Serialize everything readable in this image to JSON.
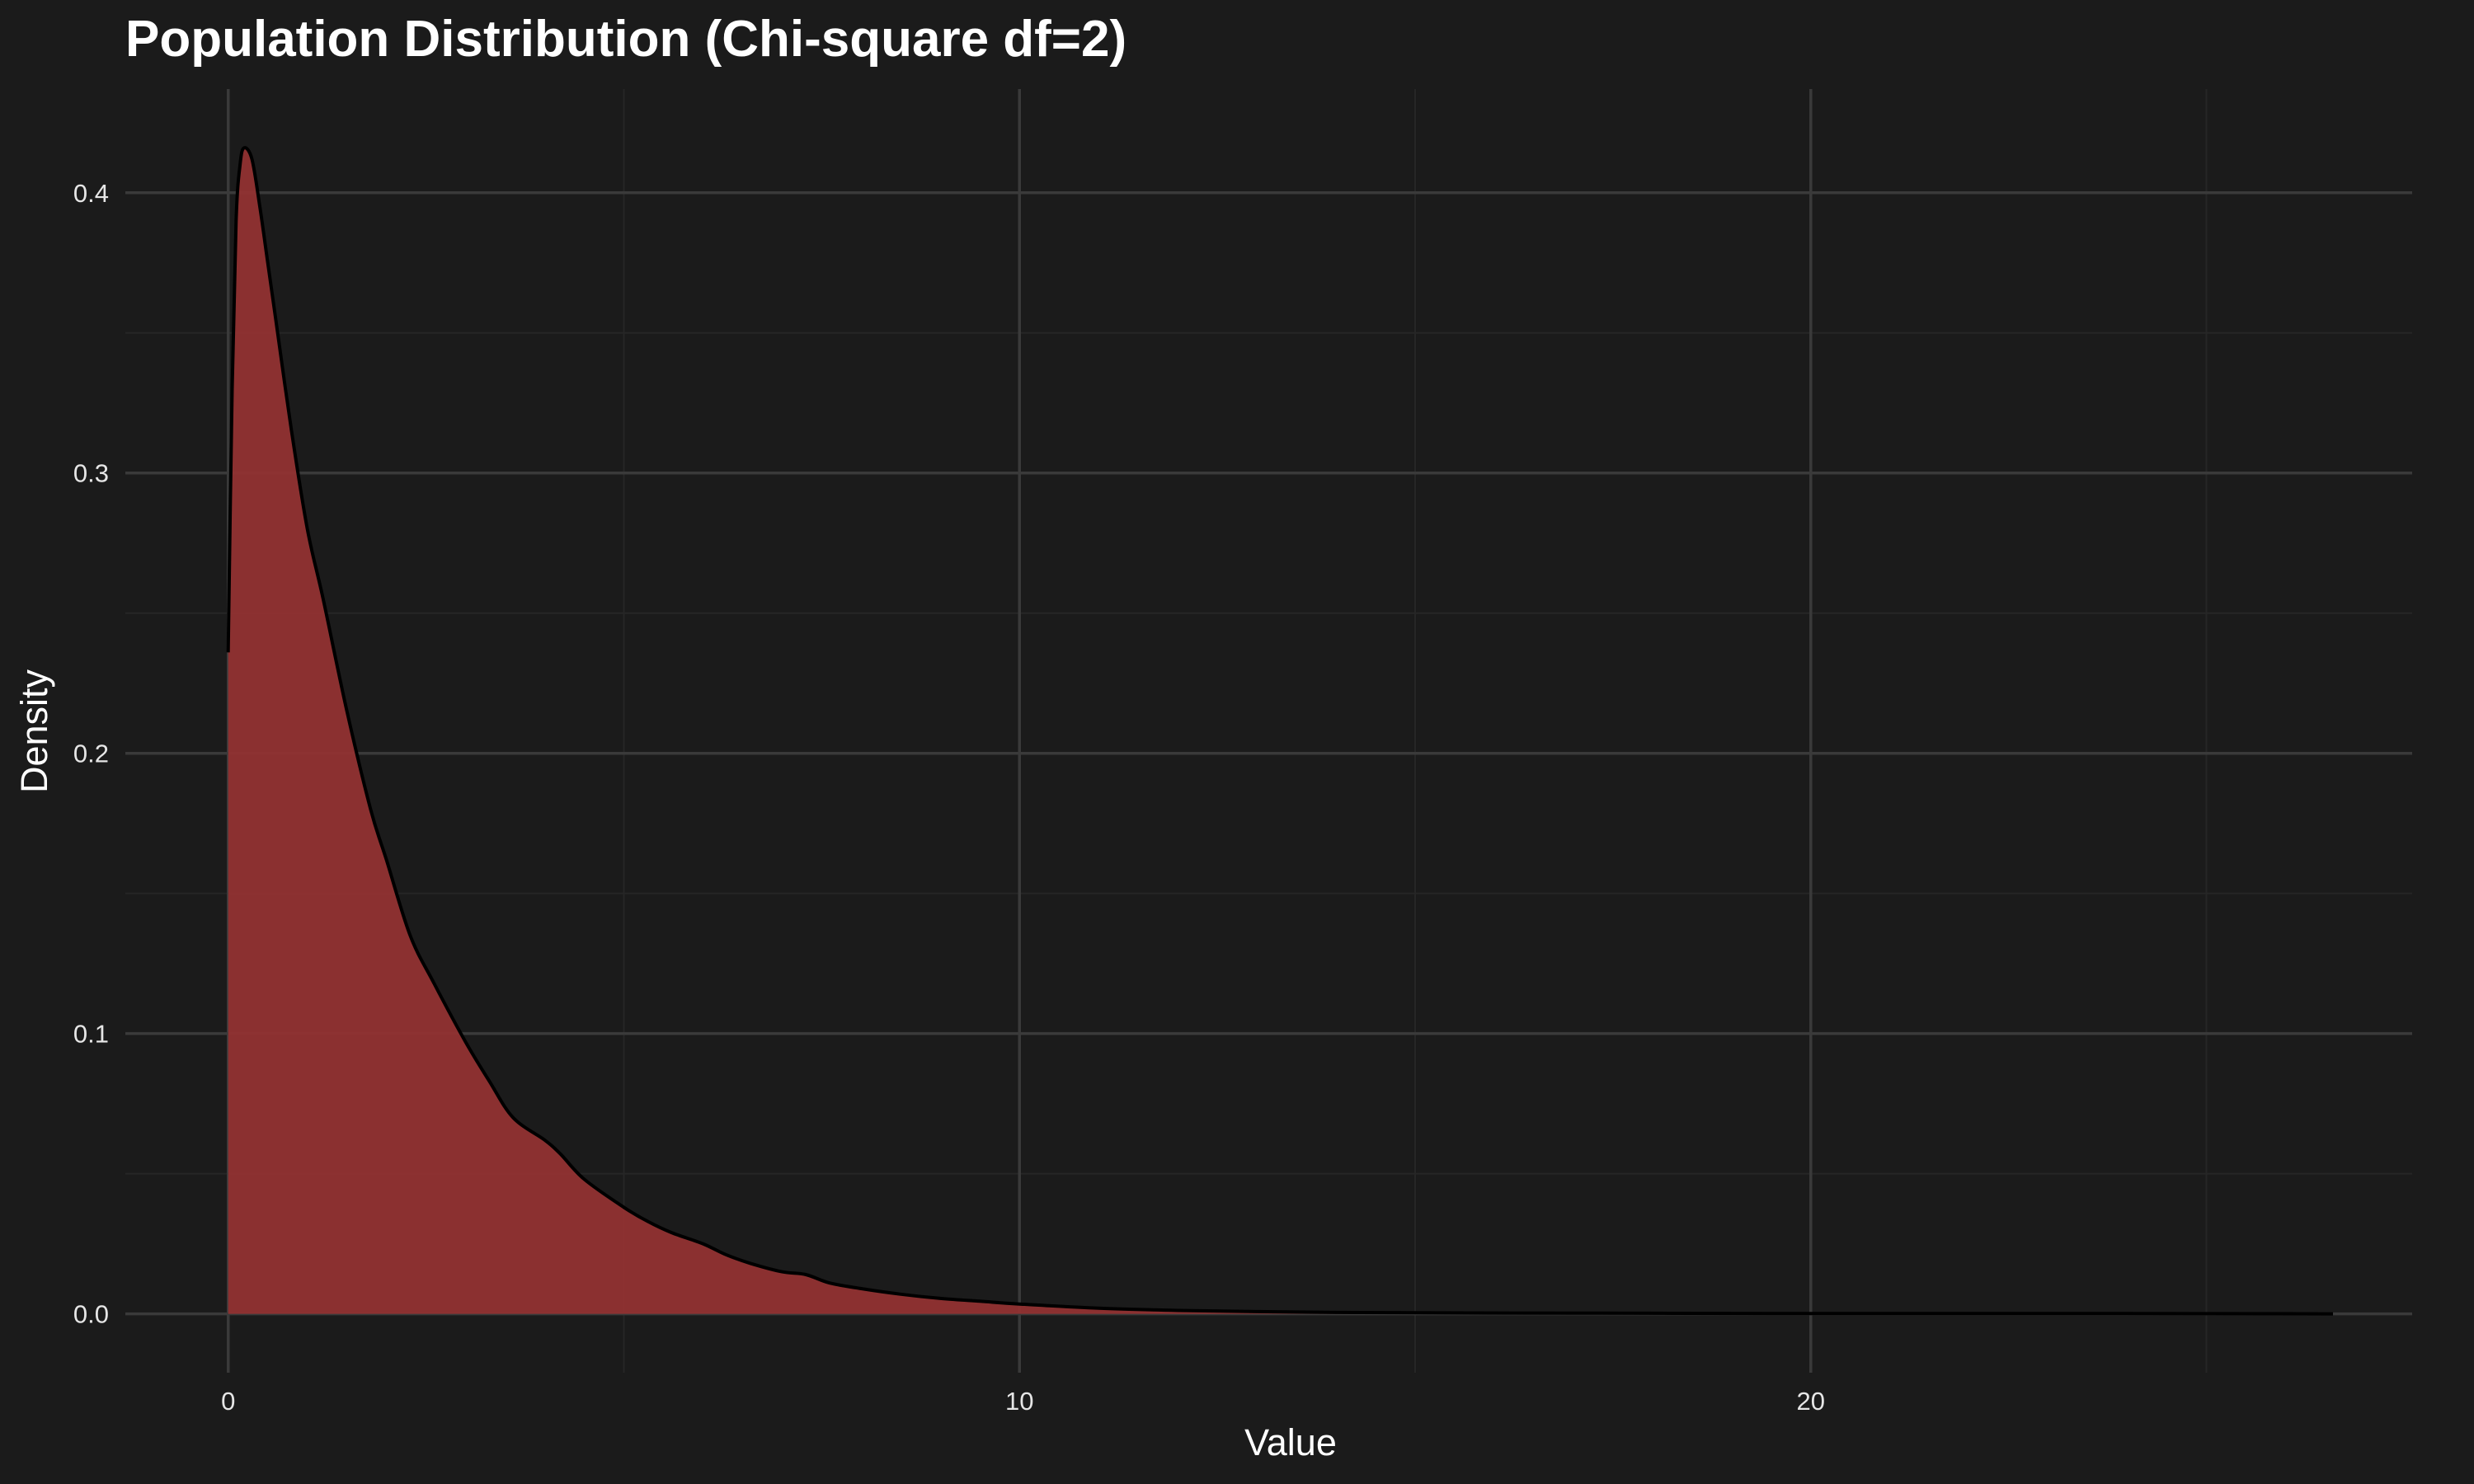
{
  "chart_data": {
    "type": "area",
    "title": "Population Distribution (Chi-square df=2)",
    "xlabel": "Value",
    "ylabel": "Density",
    "xlim": [
      -1.3,
      27.6
    ],
    "ylim": [
      -0.021,
      0.437
    ],
    "x_ticks": [
      0,
      10,
      20
    ],
    "x_tick_labels": [
      "0",
      "10",
      "20"
    ],
    "y_ticks": [
      0.0,
      0.1,
      0.2,
      0.3,
      0.4
    ],
    "y_tick_labels": [
      "0.0",
      "0.1",
      "0.2",
      "0.3",
      "0.4"
    ],
    "grid": true,
    "legend": "none",
    "fill_color": "#8f3232",
    "line_color": "#000000",
    "background_color": "#1b1b1b",
    "series": [
      {
        "x": [
          0.0,
          0.05,
          0.1,
          0.15,
          0.2,
          0.3,
          0.4,
          0.5,
          0.6,
          0.8,
          1.0,
          1.2,
          1.5,
          1.8,
          2.0,
          2.3,
          2.6,
          3.0,
          3.3,
          3.6,
          4.0,
          4.2,
          4.5,
          5.0,
          5.3,
          5.6,
          6.0,
          6.3,
          6.6,
          7.0,
          7.3,
          7.6,
          8.0,
          8.5,
          9.0,
          9.5,
          10.0,
          11.0,
          12.0,
          13.0,
          14.0,
          15.0,
          16.0,
          18.0,
          20.0,
          22.0,
          24.0,
          26.6
        ],
        "y": [
          0.236,
          0.33,
          0.39,
          0.41,
          0.416,
          0.412,
          0.395,
          0.375,
          0.355,
          0.315,
          0.28,
          0.255,
          0.215,
          0.18,
          0.162,
          0.135,
          0.118,
          0.097,
          0.083,
          0.07,
          0.062,
          0.057,
          0.048,
          0.038,
          0.033,
          0.029,
          0.025,
          0.021,
          0.018,
          0.015,
          0.014,
          0.011,
          0.009,
          0.007,
          0.0055,
          0.0045,
          0.0035,
          0.002,
          0.0012,
          0.0008,
          0.0005,
          0.0004,
          0.0003,
          0.0002,
          0.0001,
          0.0001,
          0.0001,
          0.0
        ]
      }
    ]
  }
}
